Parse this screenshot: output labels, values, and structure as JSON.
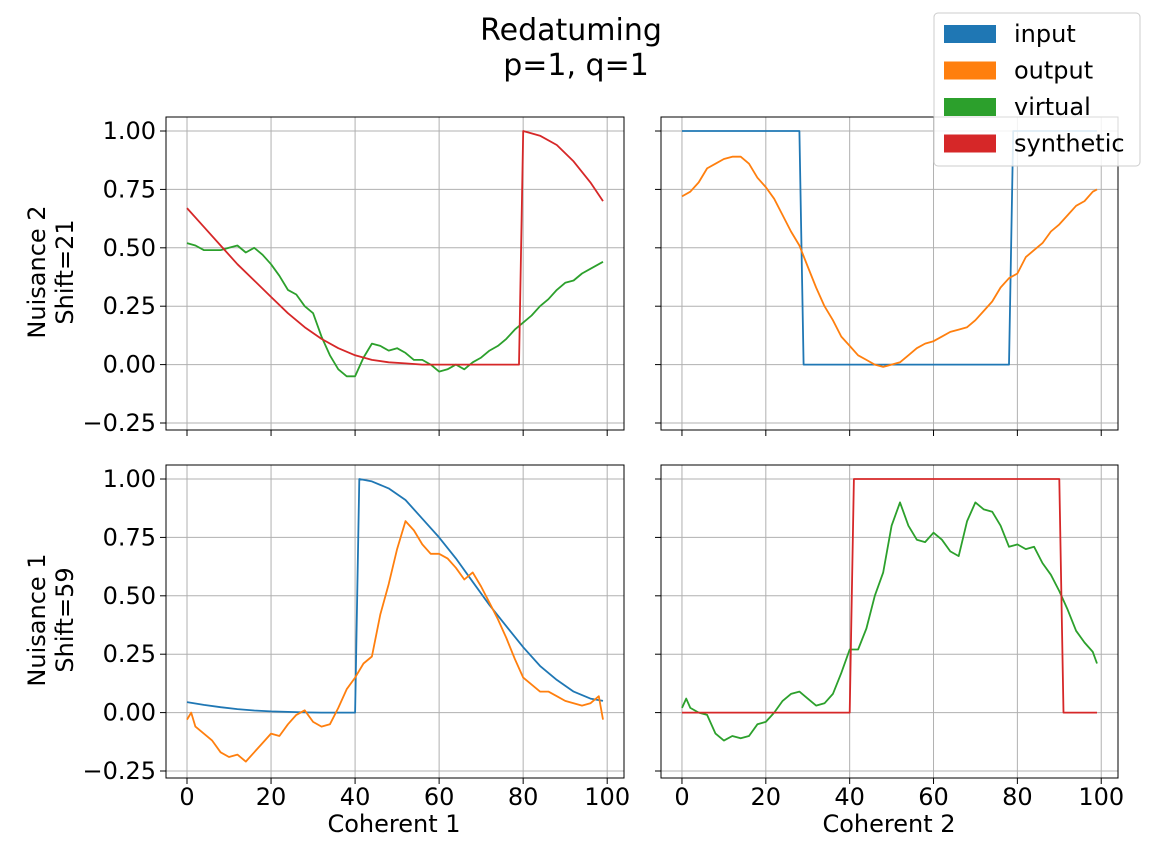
{
  "title_lines": [
    "Redatuming",
    "p=1, q=1"
  ],
  "legend": [
    {
      "label": "input",
      "color": "#1f77b4"
    },
    {
      "label": "output",
      "color": "#ff7f0e"
    },
    {
      "label": "virtual",
      "color": "#2ca02c"
    },
    {
      "label": "synthetic",
      "color": "#d62728"
    }
  ],
  "row_labels": [
    [
      "Nuisance 2",
      "Shift=21"
    ],
    [
      "Nuisance 1",
      "Shift=59"
    ]
  ],
  "col_labels": [
    "Coherent 1",
    "Coherent 2"
  ],
  "x_ticks": [
    0,
    20,
    40,
    60,
    80,
    100
  ],
  "y_ticks": [
    -0.25,
    0.0,
    0.25,
    0.5,
    0.75,
    1.0
  ],
  "y_tick_labels": [
    "−0.25",
    "0.00",
    "0.25",
    "0.50",
    "0.75",
    "1.00"
  ],
  "chart_data": [
    {
      "type": "line",
      "panel": "top-left",
      "xlim": [
        -5,
        104
      ],
      "ylim": [
        -0.28,
        1.06
      ],
      "grid": true,
      "series": [
        {
          "name": "virtual",
          "color": "#2ca02c",
          "x": [
            0,
            2,
            4,
            6,
            8,
            10,
            12,
            14,
            16,
            18,
            20,
            22,
            24,
            26,
            28,
            30,
            32,
            34,
            36,
            38,
            40,
            42,
            44,
            46,
            48,
            50,
            52,
            54,
            56,
            58,
            60,
            62,
            64,
            66,
            68,
            70,
            72,
            74,
            76,
            78,
            80,
            82,
            84,
            86,
            88,
            90,
            92,
            94,
            96,
            99
          ],
          "y": [
            0.52,
            0.51,
            0.49,
            0.49,
            0.49,
            0.5,
            0.51,
            0.48,
            0.5,
            0.47,
            0.43,
            0.38,
            0.32,
            0.3,
            0.25,
            0.22,
            0.12,
            0.04,
            -0.02,
            -0.05,
            -0.05,
            0.03,
            0.09,
            0.08,
            0.06,
            0.07,
            0.05,
            0.02,
            0.02,
            0.0,
            -0.03,
            -0.02,
            0.0,
            -0.02,
            0.01,
            0.03,
            0.06,
            0.08,
            0.11,
            0.15,
            0.18,
            0.21,
            0.25,
            0.28,
            0.32,
            0.35,
            0.36,
            0.39,
            0.41,
            0.44
          ]
        },
        {
          "name": "synthetic",
          "color": "#d62728",
          "x": [
            0,
            4,
            8,
            12,
            16,
            20,
            24,
            28,
            32,
            36,
            40,
            44,
            48,
            52,
            56,
            60,
            64,
            68,
            72,
            76,
            79,
            80,
            84,
            88,
            92,
            96,
            99
          ],
          "y": [
            0.67,
            0.59,
            0.51,
            0.43,
            0.36,
            0.29,
            0.22,
            0.16,
            0.11,
            0.07,
            0.04,
            0.02,
            0.01,
            0.005,
            0.0,
            0.0,
            0.0,
            0.0,
            0.0,
            0.0,
            0.0,
            1.0,
            0.98,
            0.94,
            0.87,
            0.78,
            0.7
          ]
        }
      ]
    },
    {
      "type": "line",
      "panel": "top-right",
      "xlim": [
        -5,
        104
      ],
      "ylim": [
        -0.28,
        1.06
      ],
      "grid": true,
      "series": [
        {
          "name": "input",
          "color": "#1f77b4",
          "x": [
            0,
            28,
            29,
            78,
            79,
            99
          ],
          "y": [
            1.0,
            1.0,
            0.0,
            0.0,
            1.0,
            1.0
          ]
        },
        {
          "name": "output",
          "color": "#ff7f0e",
          "x": [
            0,
            2,
            4,
            6,
            8,
            10,
            12,
            14,
            16,
            18,
            20,
            22,
            24,
            26,
            28,
            30,
            32,
            34,
            36,
            38,
            40,
            42,
            44,
            46,
            48,
            50,
            52,
            54,
            56,
            58,
            60,
            62,
            64,
            66,
            68,
            70,
            72,
            74,
            76,
            78,
            80,
            82,
            84,
            86,
            88,
            90,
            92,
            94,
            96,
            98,
            99
          ],
          "y": [
            0.72,
            0.74,
            0.78,
            0.84,
            0.86,
            0.88,
            0.89,
            0.89,
            0.86,
            0.8,
            0.76,
            0.71,
            0.64,
            0.57,
            0.51,
            0.42,
            0.33,
            0.25,
            0.19,
            0.12,
            0.08,
            0.04,
            0.02,
            0.0,
            -0.01,
            0.0,
            0.01,
            0.04,
            0.07,
            0.09,
            0.1,
            0.12,
            0.14,
            0.15,
            0.16,
            0.19,
            0.23,
            0.27,
            0.33,
            0.37,
            0.39,
            0.46,
            0.49,
            0.52,
            0.57,
            0.6,
            0.64,
            0.68,
            0.7,
            0.74,
            0.75
          ]
        }
      ]
    },
    {
      "type": "line",
      "panel": "bottom-left",
      "xlim": [
        -5,
        104
      ],
      "ylim": [
        -0.28,
        1.06
      ],
      "grid": true,
      "series": [
        {
          "name": "input",
          "color": "#1f77b4",
          "x": [
            0,
            4,
            8,
            12,
            16,
            20,
            24,
            28,
            32,
            36,
            40,
            41,
            44,
            48,
            52,
            56,
            60,
            64,
            68,
            72,
            76,
            80,
            84,
            88,
            92,
            96,
            99
          ],
          "y": [
            0.045,
            0.033,
            0.023,
            0.015,
            0.009,
            0.005,
            0.003,
            0.001,
            0.0,
            0.0,
            0.0,
            1.0,
            0.99,
            0.96,
            0.91,
            0.83,
            0.75,
            0.66,
            0.56,
            0.46,
            0.37,
            0.28,
            0.2,
            0.14,
            0.09,
            0.06,
            0.05
          ]
        },
        {
          "name": "output",
          "color": "#ff7f0e",
          "x": [
            0,
            1,
            2,
            4,
            6,
            8,
            10,
            12,
            14,
            16,
            18,
            20,
            22,
            24,
            26,
            28,
            30,
            32,
            34,
            36,
            38,
            40,
            42,
            44,
            46,
            48,
            50,
            52,
            54,
            56,
            58,
            60,
            62,
            64,
            66,
            68,
            70,
            72,
            74,
            76,
            78,
            80,
            82,
            84,
            86,
            88,
            90,
            92,
            94,
            96,
            98,
            99
          ],
          "y": [
            -0.03,
            0.0,
            -0.06,
            -0.09,
            -0.12,
            -0.17,
            -0.19,
            -0.18,
            -0.21,
            -0.17,
            -0.13,
            -0.09,
            -0.1,
            -0.05,
            -0.01,
            0.01,
            -0.04,
            -0.06,
            -0.05,
            0.02,
            0.1,
            0.15,
            0.21,
            0.24,
            0.42,
            0.55,
            0.7,
            0.82,
            0.78,
            0.72,
            0.68,
            0.68,
            0.66,
            0.62,
            0.57,
            0.6,
            0.54,
            0.47,
            0.4,
            0.32,
            0.23,
            0.15,
            0.12,
            0.09,
            0.09,
            0.07,
            0.05,
            0.04,
            0.03,
            0.04,
            0.07,
            -0.03
          ]
        }
      ]
    },
    {
      "type": "line",
      "panel": "bottom-right",
      "xlim": [
        -5,
        104
      ],
      "ylim": [
        -0.28,
        1.06
      ],
      "grid": true,
      "series": [
        {
          "name": "virtual",
          "color": "#2ca02c",
          "x": [
            0,
            1,
            2,
            4,
            6,
            8,
            10,
            12,
            14,
            16,
            18,
            20,
            22,
            24,
            26,
            28,
            30,
            32,
            34,
            36,
            38,
            40,
            42,
            44,
            46,
            48,
            50,
            52,
            54,
            56,
            58,
            60,
            62,
            64,
            66,
            68,
            70,
            72,
            74,
            76,
            78,
            80,
            82,
            84,
            86,
            88,
            90,
            92,
            94,
            96,
            98,
            99
          ],
          "y": [
            0.02,
            0.06,
            0.02,
            0.0,
            -0.01,
            -0.09,
            -0.12,
            -0.1,
            -0.11,
            -0.1,
            -0.05,
            -0.04,
            0.0,
            0.05,
            0.08,
            0.09,
            0.06,
            0.03,
            0.04,
            0.08,
            0.17,
            0.27,
            0.27,
            0.36,
            0.5,
            0.6,
            0.8,
            0.9,
            0.8,
            0.74,
            0.73,
            0.77,
            0.74,
            0.69,
            0.67,
            0.82,
            0.9,
            0.87,
            0.86,
            0.8,
            0.71,
            0.72,
            0.7,
            0.71,
            0.64,
            0.59,
            0.52,
            0.44,
            0.35,
            0.3,
            0.26,
            0.21
          ]
        },
        {
          "name": "synthetic",
          "color": "#d62728",
          "x": [
            0,
            40,
            41,
            90,
            91,
            99
          ],
          "y": [
            0.0,
            0.0,
            1.0,
            1.0,
            0.0,
            0.0
          ]
        }
      ]
    }
  ]
}
